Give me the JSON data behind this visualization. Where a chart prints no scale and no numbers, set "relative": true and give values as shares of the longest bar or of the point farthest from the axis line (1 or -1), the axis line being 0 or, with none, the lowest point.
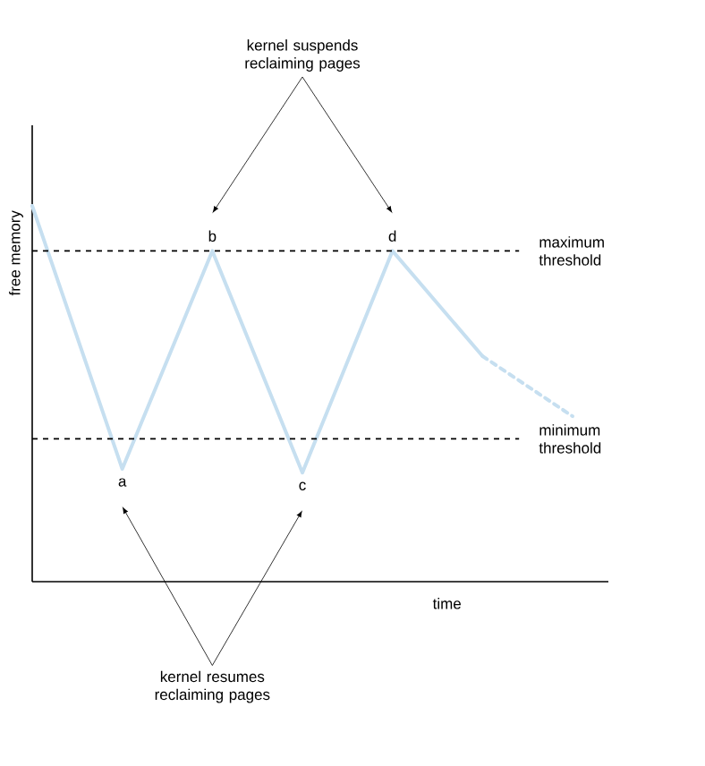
{
  "chart_data": {
    "type": "line",
    "relative": true,
    "xlabel": "time",
    "ylabel": "free memory",
    "categories": [
      null,
      null,
      null,
      null,
      null,
      null,
      null
    ],
    "series": [
      {
        "color": "#c6dff0",
        "line_style": "solid",
        "values": [
          1,
          0.3,
          0.88,
          0.29,
          0.88,
          0.6,
          null
        ]
      },
      {
        "color": "#c6dff0",
        "line_style": "dashed",
        "values": [
          null,
          null,
          null,
          null,
          null,
          0.6,
          0.44
        ]
      }
    ],
    "ref_lines": [
      {
        "axis": "y",
        "value": 0.88,
        "label": "maximum threshold",
        "color": "#000000",
        "line_style": "dashed"
      },
      {
        "axis": "y",
        "value": 0.38,
        "label": "minimum threshold",
        "color": "#000000",
        "line_style": "dashed"
      }
    ],
    "annotations": [
      "kernel suspends reclaiming pages",
      "kernel resumes reclaiming pages",
      {
        "text": "a",
        "y": 0.3
      },
      {
        "text": "b",
        "y": 0.88
      },
      {
        "text": "c",
        "y": 0.29
      },
      {
        "text": "d",
        "y": 0.88
      }
    ]
  }
}
